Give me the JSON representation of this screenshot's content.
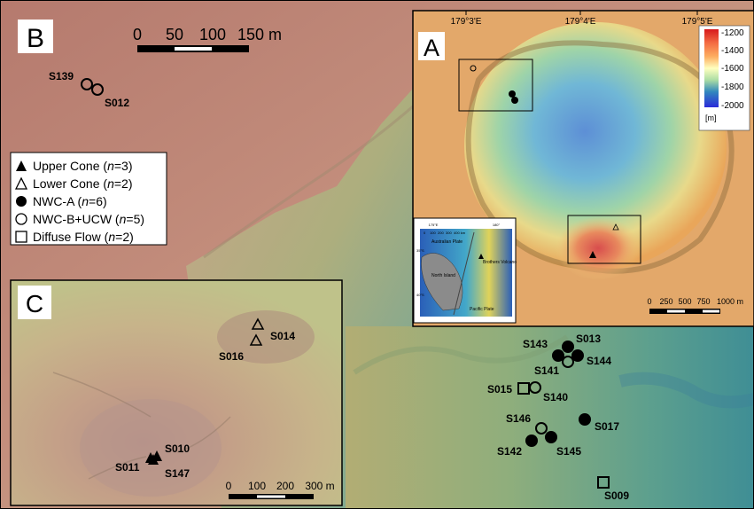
{
  "panels": {
    "b": {
      "label": "B"
    },
    "a": {
      "label": "A"
    },
    "c": {
      "label": "C"
    }
  },
  "scalebars": {
    "b": {
      "ticks": [
        "0",
        "50",
        "100",
        "150 m"
      ]
    },
    "a": {
      "ticks": [
        "0",
        "250",
        "500",
        "750",
        "1000 m"
      ]
    },
    "c": {
      "ticks": [
        "0",
        "100",
        "200",
        "300 m"
      ]
    }
  },
  "panel_a_coords": [
    "179°3'E",
    "179°4'E",
    "179°5'E"
  ],
  "colorbar": {
    "ticks": [
      "-1200",
      "-1400",
      "-1600",
      "-1800",
      "-2000"
    ],
    "unit": "[m]",
    "colors": [
      "#d7191c",
      "#f46d43",
      "#fdae61",
      "#ffffbf",
      "#abdda4",
      "#66c2a5",
      "#3288bd",
      "#2b2bd9"
    ]
  },
  "legend": {
    "items": [
      {
        "symbol": "filled-triangle",
        "label": "Upper Cone",
        "count": "3"
      },
      {
        "symbol": "open-triangle",
        "label": "Lower Cone",
        "count": "2"
      },
      {
        "symbol": "filled-circle",
        "label": "NWC-A",
        "count": "6"
      },
      {
        "symbol": "open-circle",
        "label": "NWC-B+UCW",
        "count": "5"
      },
      {
        "symbol": "open-square",
        "label": "Diffuse Flow",
        "count": "2"
      }
    ],
    "n_symbol": "n"
  },
  "sites": {
    "S139": "S139",
    "S012": "S012",
    "S143": "S143",
    "S013": "S013",
    "S144": "S144",
    "S141": "S141",
    "S015": "S015",
    "S140": "S140",
    "S146": "S146",
    "S017": "S017",
    "S142": "S142",
    "S145": "S145",
    "S009": "S009",
    "S014": "S014",
    "S016": "S016",
    "S010": "S010",
    "S011": "S011",
    "S147": "S147"
  },
  "inset": {
    "plates": [
      "Australian Plate",
      "Pacific Plate"
    ],
    "labels": [
      "North Island",
      "Brothers Volcano"
    ],
    "lat_ticks": [
      "35°S",
      "40°S"
    ],
    "lon_ticks": [
      "175°E",
      "180°"
    ],
    "scale_ticks": [
      "0",
      "100",
      "200",
      "300",
      "400 km"
    ]
  }
}
